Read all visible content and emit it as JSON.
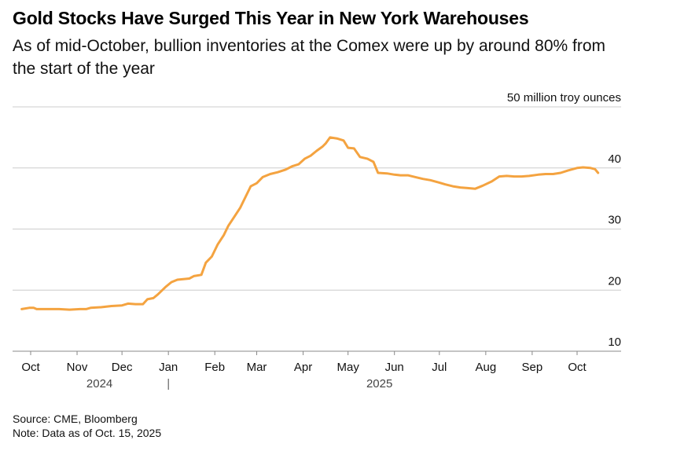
{
  "title": "Gold Stocks Have Surged This Year in New York Warehouses",
  "subtitle": "As of mid-October, bullion inventories at the Comex were up by around 80% from the start of the year",
  "footer": {
    "source": "Source: CME, Bloomberg",
    "note": "Note: Data as of Oct. 15, 2025"
  },
  "chart_data": {
    "type": "line",
    "unit_label": "50 million troy ounces",
    "ylim": [
      10,
      50
    ],
    "y_ticks": [
      {
        "value": 40,
        "label": "40"
      },
      {
        "value": 30,
        "label": "30"
      },
      {
        "value": 20,
        "label": "20"
      },
      {
        "value": 10,
        "label": "10"
      }
    ],
    "grid": true,
    "x_ticks": [
      {
        "date": "2024-10-01",
        "label": "Oct"
      },
      {
        "date": "2024-11-01",
        "label": "Nov"
      },
      {
        "date": "2024-12-01",
        "label": "Dec"
      },
      {
        "date": "2025-01-01",
        "label": "Jan"
      },
      {
        "date": "2025-02-01",
        "label": "Feb"
      },
      {
        "date": "2025-03-01",
        "label": "Mar"
      },
      {
        "date": "2025-04-01",
        "label": "Apr"
      },
      {
        "date": "2025-05-01",
        "label": "May"
      },
      {
        "date": "2025-06-01",
        "label": "Jun"
      },
      {
        "date": "2025-07-01",
        "label": "Jul"
      },
      {
        "date": "2025-08-01",
        "label": "Aug"
      },
      {
        "date": "2025-09-01",
        "label": "Sep"
      },
      {
        "date": "2025-10-01",
        "label": "Oct"
      }
    ],
    "year_labels": [
      {
        "label": "2024",
        "date": "2024-11-16"
      },
      {
        "label": "2025",
        "date": "2025-05-22"
      }
    ],
    "year_divider": "2025-01-01",
    "series": [
      {
        "color": "#f4a340",
        "points": [
          [
            "2024-09-25",
            16.9
          ],
          [
            "2024-09-30",
            17.1
          ],
          [
            "2024-10-03",
            17.1
          ],
          [
            "2024-10-05",
            16.9
          ],
          [
            "2024-10-12",
            16.9
          ],
          [
            "2024-10-20",
            16.9
          ],
          [
            "2024-10-27",
            16.8
          ],
          [
            "2024-11-03",
            16.9
          ],
          [
            "2024-11-07",
            16.9
          ],
          [
            "2024-11-10",
            17.1
          ],
          [
            "2024-11-17",
            17.2
          ],
          [
            "2024-11-24",
            17.4
          ],
          [
            "2024-12-01",
            17.5
          ],
          [
            "2024-12-05",
            17.8
          ],
          [
            "2024-12-10",
            17.7
          ],
          [
            "2024-12-15",
            17.7
          ],
          [
            "2024-12-18",
            18.5
          ],
          [
            "2024-12-22",
            18.7
          ],
          [
            "2024-12-25",
            19.3
          ],
          [
            "2024-12-30",
            20.5
          ],
          [
            "2025-01-03",
            21.3
          ],
          [
            "2025-01-07",
            21.7
          ],
          [
            "2025-01-15",
            21.9
          ],
          [
            "2025-01-18",
            22.3
          ],
          [
            "2025-01-23",
            22.5
          ],
          [
            "2025-01-26",
            24.5
          ],
          [
            "2025-01-30",
            25.5
          ],
          [
            "2025-02-03",
            27.5
          ],
          [
            "2025-02-07",
            29.0
          ],
          [
            "2025-02-10",
            30.5
          ],
          [
            "2025-02-14",
            32.0
          ],
          [
            "2025-02-18",
            33.5
          ],
          [
            "2025-02-21",
            35.0
          ],
          [
            "2025-02-25",
            37.0
          ],
          [
            "2025-03-01",
            37.5
          ],
          [
            "2025-03-05",
            38.5
          ],
          [
            "2025-03-10",
            39.0
          ],
          [
            "2025-03-15",
            39.3
          ],
          [
            "2025-03-20",
            39.7
          ],
          [
            "2025-03-25",
            40.3
          ],
          [
            "2025-03-29",
            40.6
          ],
          [
            "2025-04-02",
            41.5
          ],
          [
            "2025-04-06",
            42.0
          ],
          [
            "2025-04-10",
            42.8
          ],
          [
            "2025-04-14",
            43.5
          ],
          [
            "2025-04-16",
            44.0
          ],
          [
            "2025-04-19",
            45.0
          ],
          [
            "2025-04-24",
            44.8
          ],
          [
            "2025-04-28",
            44.5
          ],
          [
            "2025-05-01",
            43.3
          ],
          [
            "2025-05-05",
            43.2
          ],
          [
            "2025-05-09",
            41.8
          ],
          [
            "2025-05-14",
            41.5
          ],
          [
            "2025-05-18",
            41.0
          ],
          [
            "2025-05-21",
            39.2
          ],
          [
            "2025-05-27",
            39.1
          ],
          [
            "2025-06-01",
            38.9
          ],
          [
            "2025-06-05",
            38.8
          ],
          [
            "2025-06-10",
            38.8
          ],
          [
            "2025-06-15",
            38.5
          ],
          [
            "2025-06-20",
            38.2
          ],
          [
            "2025-06-25",
            38.0
          ],
          [
            "2025-07-01",
            37.6
          ],
          [
            "2025-07-05",
            37.3
          ],
          [
            "2025-07-10",
            37.0
          ],
          [
            "2025-07-15",
            36.8
          ],
          [
            "2025-07-20",
            36.7
          ],
          [
            "2025-07-25",
            36.6
          ],
          [
            "2025-07-30",
            37.1
          ],
          [
            "2025-08-05",
            37.8
          ],
          [
            "2025-08-10",
            38.6
          ],
          [
            "2025-08-15",
            38.7
          ],
          [
            "2025-08-20",
            38.6
          ],
          [
            "2025-08-25",
            38.6
          ],
          [
            "2025-08-30",
            38.7
          ],
          [
            "2025-09-05",
            38.9
          ],
          [
            "2025-09-10",
            39.0
          ],
          [
            "2025-09-15",
            39.0
          ],
          [
            "2025-09-20",
            39.2
          ],
          [
            "2025-09-25",
            39.6
          ],
          [
            "2025-10-01",
            40.0
          ],
          [
            "2025-10-05",
            40.1
          ],
          [
            "2025-10-10",
            40.0
          ],
          [
            "2025-10-13",
            39.8
          ],
          [
            "2025-10-15",
            39.2
          ]
        ]
      }
    ]
  }
}
